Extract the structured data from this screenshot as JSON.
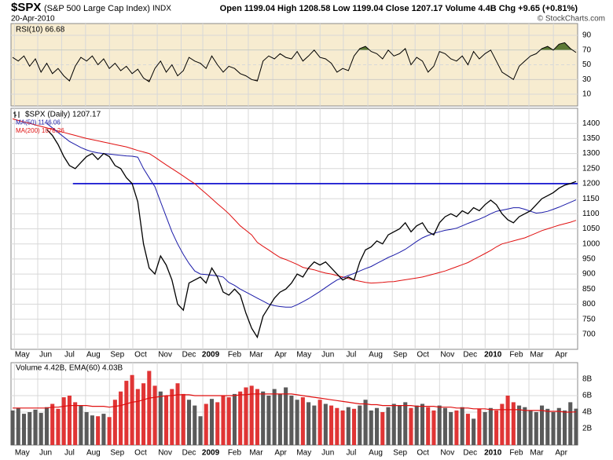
{
  "header": {
    "symbol": "$SPX",
    "name": "(S&P 500 Large Cap Index)",
    "exchange": "INDX",
    "date": "20-Apr-2010",
    "quote": "Open 1199.04 High 1208.58 Low 1199.04 Close 1207.17 Volume 4.4B Chg +9.65 (+0.81%)",
    "credit": "© StockCharts.com"
  },
  "chart_data": [
    {
      "type": "line",
      "title": "RSI(10) 66.68",
      "color": "#000000",
      "background": "#f7ecd0",
      "values": [
        60,
        55,
        62,
        48,
        58,
        40,
        52,
        38,
        45,
        35,
        28,
        48,
        60,
        55,
        62,
        50,
        58,
        45,
        52,
        42,
        48,
        38,
        44,
        32,
        27,
        45,
        55,
        40,
        50,
        35,
        42,
        60,
        55,
        52,
        45,
        62,
        50,
        40,
        48,
        45,
        38,
        35,
        30,
        28,
        55,
        62,
        58,
        65,
        60,
        58,
        68,
        55,
        62,
        70,
        60,
        58,
        52,
        40,
        45,
        42,
        62,
        72,
        75,
        68,
        65,
        58,
        70,
        62,
        65,
        72,
        50,
        60,
        55,
        40,
        48,
        68,
        65,
        58,
        55,
        62,
        50,
        68,
        58,
        65,
        70,
        55,
        40,
        35,
        30,
        48,
        55,
        62,
        65,
        72,
        75,
        70,
        78,
        80,
        72,
        66.68
      ],
      "ylim": [
        -6,
        106
      ],
      "yticks": [
        10,
        30,
        50,
        70,
        90
      ],
      "shade": {
        "above": 70,
        "below": 30,
        "above_color": "#5d7a35",
        "below_color": "#8b6f4e"
      }
    },
    {
      "type": "line",
      "background": "#ffffff",
      "series": [
        {
          "name": "$SPX (Daily) 1207.17",
          "color": "#000000",
          "values": [
            null,
            null,
            null,
            null,
            null,
            null,
            1380,
            1360,
            1330,
            1290,
            1260,
            1250,
            1270,
            1290,
            1300,
            1280,
            1300,
            1290,
            1260,
            1250,
            1220,
            1200,
            1140,
            1000,
            920,
            900,
            960,
            930,
            880,
            800,
            780,
            870,
            880,
            890,
            870,
            920,
            890,
            840,
            830,
            850,
            830,
            770,
            720,
            690,
            760,
            790,
            820,
            840,
            850,
            870,
            900,
            890,
            920,
            940,
            930,
            940,
            920,
            900,
            880,
            890,
            880,
            940,
            980,
            990,
            1010,
            1000,
            1030,
            1040,
            1050,
            1070,
            1040,
            1060,
            1070,
            1040,
            1030,
            1070,
            1090,
            1100,
            1090,
            1110,
            1100,
            1120,
            1110,
            1130,
            1145,
            1130,
            1100,
            1080,
            1070,
            1090,
            1100,
            1110,
            1130,
            1150,
            1160,
            1170,
            1185,
            1195,
            1200,
            1207.17
          ]
        },
        {
          "name": "MA(50) 1146.06",
          "color": "#1a1aa8",
          "values": [
            null,
            null,
            null,
            null,
            null,
            null,
            1400,
            1385,
            1370,
            1355,
            1340,
            1330,
            1320,
            1312,
            1306,
            1302,
            1300,
            1298,
            1296,
            1294,
            1292,
            1291,
            1288,
            1250,
            1220,
            1190,
            1140,
            1090,
            1040,
            1000,
            965,
            935,
            910,
            900,
            898,
            896,
            894,
            890,
            872,
            862,
            850,
            840,
            830,
            820,
            810,
            800,
            795,
            792,
            790,
            790,
            798,
            808,
            818,
            830,
            842,
            855,
            868,
            880,
            888,
            895,
            902,
            910,
            918,
            925,
            935,
            945,
            955,
            963,
            972,
            982,
            995,
            1008,
            1020,
            1028,
            1035,
            1040,
            1045,
            1048,
            1052,
            1060,
            1068,
            1075,
            1082,
            1090,
            1100,
            1108,
            1112,
            1116,
            1120,
            1120,
            1115,
            1108,
            1102,
            1104,
            1108,
            1115,
            1122,
            1130,
            1138,
            1146.06
          ]
        },
        {
          "name": "MA(200) 1078.26",
          "color": "#e01010",
          "values": [
            1415,
            1410,
            1405,
            1400,
            1395,
            1390,
            1385,
            1380,
            1375,
            1370,
            1365,
            1360,
            1355,
            1350,
            1346,
            1342,
            1338,
            1334,
            1330,
            1326,
            1322,
            1316,
            1310,
            1305,
            1300,
            1288,
            1275,
            1262,
            1250,
            1238,
            1225,
            1212,
            1200,
            1183,
            1167,
            1150,
            1133,
            1117,
            1100,
            1080,
            1060,
            1045,
            1030,
            1005,
            992,
            980,
            967,
            955,
            948,
            940,
            932,
            922,
            918,
            914,
            908,
            903,
            900,
            895,
            890,
            885,
            880,
            876,
            872,
            870,
            871,
            872,
            874,
            875,
            878,
            881,
            884,
            887,
            890,
            895,
            900,
            905,
            910,
            917,
            924,
            931,
            938,
            948,
            958,
            968,
            978,
            990,
            1000,
            1005,
            1010,
            1015,
            1020,
            1028,
            1036,
            1044,
            1050,
            1056,
            1062,
            1067,
            1072,
            1078.26
          ]
        }
      ],
      "hline": {
        "value": 1200,
        "from": 10.6,
        "color": "#0000cc"
      },
      "ylim": [
        650,
        1450
      ],
      "yticks": [
        700,
        750,
        800,
        850,
        900,
        950,
        1000,
        1050,
        1100,
        1150,
        1200,
        1250,
        1300,
        1350,
        1400
      ],
      "xlim": [
        0,
        99
      ],
      "xticks": [
        {
          "value": 1.7,
          "label": "May"
        },
        {
          "value": 5.8,
          "label": "Jun"
        },
        {
          "value": 10,
          "label": "Jul"
        },
        {
          "value": 14.2,
          "label": "Aug"
        },
        {
          "value": 18.4,
          "label": "Sep"
        },
        {
          "value": 22.5,
          "label": "Oct"
        },
        {
          "value": 26.8,
          "label": "Nov"
        },
        {
          "value": 31,
          "label": "Dec"
        },
        {
          "value": 34.8,
          "label": "2009"
        },
        {
          "value": 39,
          "label": "Feb"
        },
        {
          "value": 42.8,
          "label": "Mar"
        },
        {
          "value": 47.1,
          "label": "Apr"
        },
        {
          "value": 51.2,
          "label": "May"
        },
        {
          "value": 55.4,
          "label": "Jun"
        },
        {
          "value": 59.5,
          "label": "Jul"
        },
        {
          "value": 63.8,
          "label": "Aug"
        },
        {
          "value": 68.1,
          "label": "Sep"
        },
        {
          "value": 72.1,
          "label": "Oct"
        },
        {
          "value": 76.4,
          "label": "Nov"
        },
        {
          "value": 80.4,
          "label": "Dec"
        },
        {
          "value": 84.4,
          "label": "2010"
        },
        {
          "value": 88.5,
          "label": "Feb"
        },
        {
          "value": 92.1,
          "label": "Mar"
        },
        {
          "value": 96.4,
          "label": "Apr"
        }
      ]
    },
    {
      "type": "bar",
      "title": "Volume 4.42B, EMA(60) 4.03B",
      "background": "#ffffff",
      "colors": {
        "up": "#5a5a5a",
        "down": "#e03535"
      },
      "values": [
        4.2,
        4.5,
        3.8,
        4.0,
        4.3,
        3.9,
        4.6,
        5.0,
        4.4,
        5.8,
        6.0,
        5.2,
        4.8,
        4.0,
        3.6,
        3.5,
        3.8,
        3.4,
        5.5,
        6.5,
        7.8,
        8.5,
        6.8,
        7.5,
        9.0,
        7.2,
        6.5,
        6.0,
        6.8,
        7.5,
        6.2,
        5.5,
        4.8,
        3.5,
        5.0,
        5.6,
        5.2,
        6.0,
        5.8,
        6.2,
        6.5,
        7.0,
        7.2,
        6.8,
        6.5,
        6.0,
        6.8,
        6.2,
        7.0,
        6.0,
        5.5,
        5.8,
        5.2,
        4.8,
        5.5,
        5.0,
        4.8,
        4.5,
        4.2,
        4.6,
        4.4,
        4.8,
        5.5,
        4.2,
        4.5,
        4.0,
        4.6,
        5.0,
        4.8,
        5.2,
        4.5,
        4.8,
        5.0,
        4.6,
        4.2,
        4.8,
        4.5,
        4.0,
        4.2,
        4.6,
        3.8,
        3.2,
        4.4,
        4.0,
        4.5,
        4.2,
        5.0,
        6.0,
        5.2,
        4.8,
        4.6,
        4.2,
        4.0,
        4.8,
        4.4,
        4.0,
        4.5,
        4.2,
        5.2,
        4.42
      ],
      "ema": {
        "color": "#e01010",
        "values": [
          4.5,
          4.5,
          4.5,
          4.5,
          4.5,
          4.5,
          4.5,
          4.6,
          4.6,
          4.7,
          4.8,
          4.8,
          4.8,
          4.8,
          4.7,
          4.7,
          4.7,
          4.6,
          4.7,
          4.8,
          5.0,
          5.2,
          5.3,
          5.5,
          5.7,
          5.8,
          5.9,
          6.0,
          6.0,
          6.1,
          6.1,
          6.1,
          6.0,
          6.0,
          6.0,
          6.0,
          6.0,
          6.0,
          6.0,
          6.0,
          6.1,
          6.1,
          6.2,
          6.2,
          6.2,
          6.2,
          6.2,
          6.2,
          6.2,
          6.2,
          6.1,
          6.0,
          5.9,
          5.8,
          5.7,
          5.6,
          5.5,
          5.4,
          5.3,
          5.2,
          5.1,
          5.0,
          5.0,
          4.9,
          4.9,
          4.8,
          4.8,
          4.8,
          4.8,
          4.8,
          4.8,
          4.7,
          4.7,
          4.7,
          4.7,
          4.6,
          4.6,
          4.6,
          4.5,
          4.5,
          4.5,
          4.4,
          4.4,
          4.4,
          4.3,
          4.3,
          4.3,
          4.3,
          4.3,
          4.3,
          4.2,
          4.2,
          4.2,
          4.2,
          4.1,
          4.1,
          4.1,
          4.0,
          4.0,
          4.03
        ]
      },
      "ylim": [
        0,
        10
      ],
      "yticks": [
        {
          "value": 2,
          "label": "2B"
        },
        {
          "value": 4,
          "label": "4B"
        },
        {
          "value": 6,
          "label": "6B"
        },
        {
          "value": 8,
          "label": "8B"
        }
      ]
    }
  ]
}
